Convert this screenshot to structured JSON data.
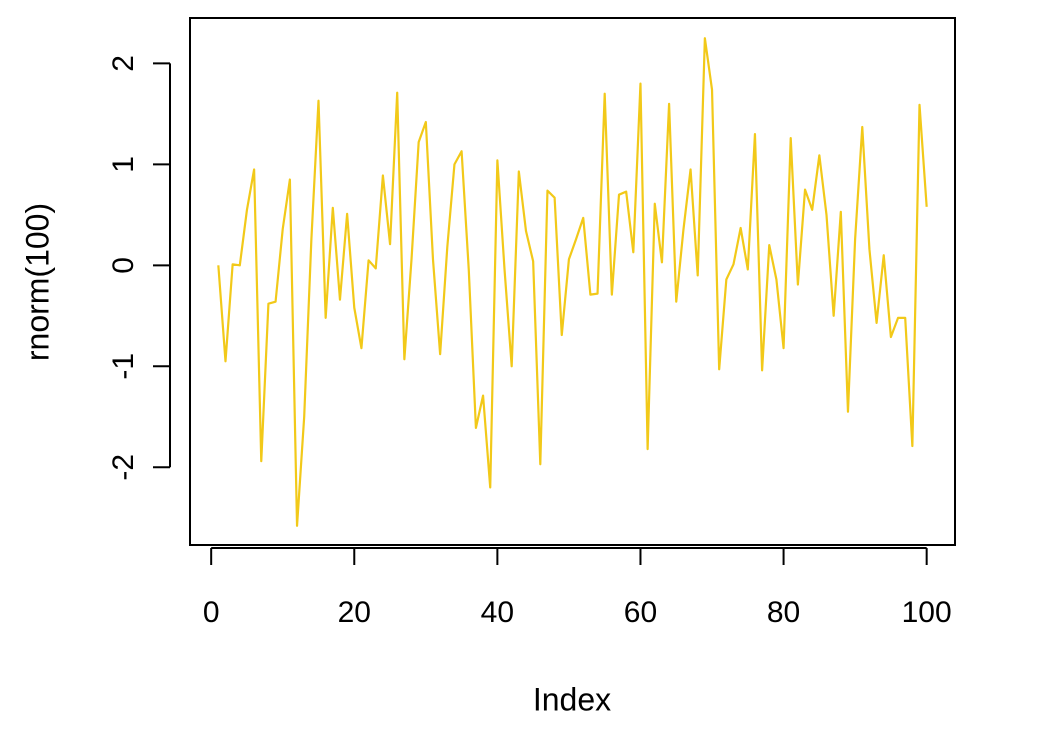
{
  "chart_data": {
    "type": "line",
    "x_label": "Index",
    "y_label": "rnorm(100)",
    "x": [
      1,
      2,
      3,
      4,
      5,
      6,
      7,
      8,
      9,
      10,
      11,
      12,
      13,
      14,
      15,
      16,
      17,
      18,
      19,
      20,
      21,
      22,
      23,
      24,
      25,
      26,
      27,
      28,
      29,
      30,
      31,
      32,
      33,
      34,
      35,
      36,
      37,
      38,
      39,
      40,
      41,
      42,
      43,
      44,
      45,
      46,
      47,
      48,
      49,
      50,
      51,
      52,
      53,
      54,
      55,
      56,
      57,
      58,
      59,
      60,
      61,
      62,
      63,
      64,
      65,
      66,
      67,
      68,
      69,
      70,
      71,
      72,
      73,
      74,
      75,
      76,
      77,
      78,
      79,
      80,
      81,
      82,
      83,
      84,
      85,
      86,
      87,
      88,
      89,
      90,
      91,
      92,
      93,
      94,
      95,
      96,
      97,
      98,
      99,
      100
    ],
    "values": [
      0.0,
      -0.95,
      0.01,
      0.0,
      0.55,
      0.95,
      -1.94,
      -0.38,
      -0.36,
      0.36,
      0.85,
      -2.58,
      -1.5,
      0.25,
      1.63,
      -0.52,
      0.57,
      -0.34,
      0.51,
      -0.42,
      -0.82,
      0.05,
      -0.03,
      0.89,
      0.21,
      1.71,
      -0.93,
      0.06,
      1.22,
      1.42,
      0.06,
      -0.88,
      0.18,
      1.0,
      1.13,
      -0.04,
      -1.61,
      -1.29,
      -2.2,
      1.04,
      -0.04,
      -1.0,
      0.93,
      0.34,
      0.04,
      -1.97,
      0.74,
      0.67,
      -0.69,
      0.06,
      0.26,
      0.47,
      -0.29,
      -0.28,
      1.7,
      -0.29,
      0.7,
      0.73,
      0.13,
      1.8,
      -1.82,
      0.61,
      0.03,
      1.6,
      -0.36,
      0.35,
      0.95,
      -0.1,
      2.25,
      1.74,
      -1.03,
      -0.14,
      0.01,
      0.37,
      -0.04,
      1.3,
      -1.04,
      0.2,
      -0.14,
      -0.82,
      1.26,
      -0.19,
      0.75,
      0.55,
      1.09,
      0.5,
      -0.5,
      0.53,
      -1.45,
      0.26,
      1.37,
      0.16,
      -0.57,
      0.1,
      -0.71,
      -0.52,
      -0.52,
      -1.79,
      1.59,
      0.58
    ],
    "color": "#f2c919",
    "xlim": [
      -2.96,
      103.96
    ],
    "xticks": [
      0,
      20,
      40,
      60,
      80,
      100
    ],
    "ylim": [
      -2.77,
      2.45
    ],
    "yticks": [
      -2,
      -1,
      0,
      1,
      2
    ]
  }
}
